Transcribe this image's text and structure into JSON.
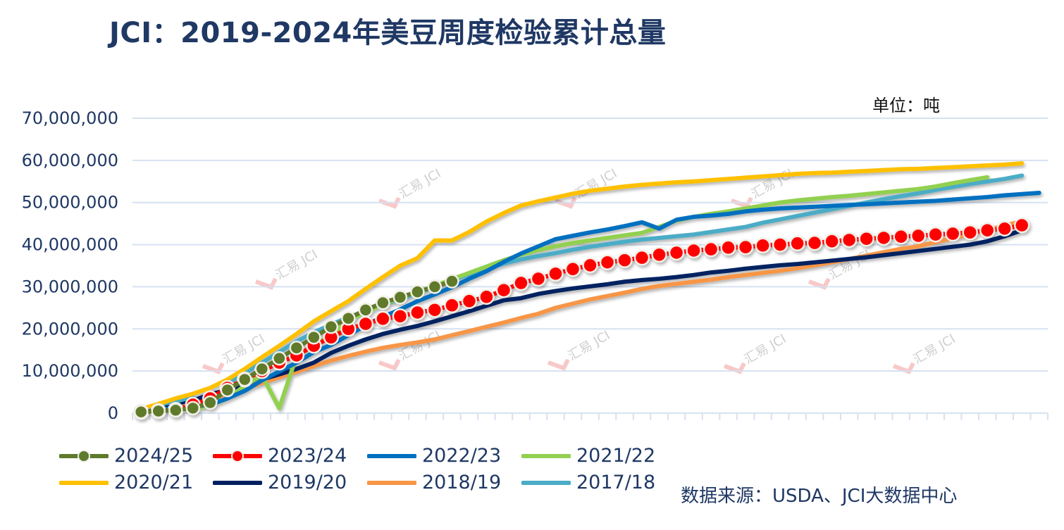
{
  "title": "JCI：2019-2024年美豆周度检验累计总量",
  "unit_label": "单位：吨",
  "source": "数据来源：USDA、JCI大数据中心",
  "watermark": "汇易 JCI",
  "chart_data": {
    "type": "line",
    "title": "JCI：2019-2024年美豆周度检验累计总量",
    "ylabel": "",
    "xlabel": "",
    "ylim": [
      0,
      70000000
    ],
    "yticks": [
      "0",
      "10,000,000",
      "20,000,000",
      "30,000,000",
      "40,000,000",
      "50,000,000",
      "60,000,000",
      "70,000,000"
    ],
    "x_categories_count": 53,
    "grid": "horizontal",
    "legend_placement": "bottom",
    "value_unit": "million tonnes (approx., read from axis)",
    "series": [
      {
        "name": "2024/25",
        "color": "#5E7A2C",
        "marker": "circle",
        "values": [
          0.3,
          0.5,
          0.7,
          1.2,
          2.5,
          5.5,
          8.0,
          10.5,
          13.0,
          15.5,
          18.0,
          20.5,
          22.5,
          24.5,
          26.2,
          27.5,
          28.8,
          30.0,
          31.3
        ]
      },
      {
        "name": "2023/24",
        "color": "#FF0000",
        "marker": "circle",
        "values": [
          0.3,
          0.5,
          0.8,
          2.0,
          3.5,
          6.0,
          8.0,
          10.0,
          12.0,
          13.7,
          16.0,
          18.0,
          20.0,
          21.2,
          22.4,
          23.0,
          23.9,
          24.5,
          25.6,
          26.6,
          27.6,
          29.2,
          30.9,
          31.9,
          33.1,
          34.2,
          35.1,
          35.8,
          36.3,
          36.9,
          37.6,
          38.1,
          38.6,
          38.9,
          39.3,
          39.4,
          39.8,
          40.0,
          40.3,
          40.4,
          40.8,
          41.1,
          41.4,
          41.6,
          41.9,
          42.1,
          42.4,
          42.6,
          42.9,
          43.4,
          43.8,
          44.6
        ]
      },
      {
        "name": "2022/23",
        "color": "#0070C0",
        "marker": "none",
        "values": [
          0.7,
          0.9,
          1.2,
          1.6,
          2.0,
          3.5,
          5.3,
          7.8,
          9.9,
          12.0,
          14.5,
          16.2,
          18.5,
          20.9,
          22.9,
          24.6,
          26.6,
          28.2,
          29.9,
          31.9,
          33.7,
          35.9,
          37.9,
          39.6,
          41.3,
          42.1,
          42.9,
          43.6,
          44.4,
          45.3,
          43.8,
          45.9,
          46.6,
          46.9,
          47.3,
          47.9,
          48.3,
          48.6,
          48.8,
          49.0,
          49.2,
          49.4,
          49.6,
          49.8,
          50.0,
          50.2,
          50.4,
          50.7,
          51.0,
          51.3,
          51.7,
          52.0,
          52.3
        ]
      },
      {
        "name": "2021/22",
        "color": "#92D050",
        "marker": "none",
        "values": [
          0.6,
          0.7,
          0.8,
          1.0,
          1.8,
          3.5,
          6.5,
          9.0,
          1.2,
          13.5,
          16.0,
          18.5,
          22.0,
          24.0,
          25.8,
          27.4,
          28.8,
          30.2,
          31.8,
          33.3,
          34.8,
          36.3,
          37.6,
          38.7,
          39.6,
          40.4,
          41.0,
          41.6,
          42.2,
          42.8,
          44.2,
          45.7,
          46.6,
          47.3,
          47.9,
          48.6,
          49.3,
          50.0,
          50.5,
          50.9,
          51.3,
          51.6,
          52.0,
          52.4,
          52.8,
          53.2,
          53.8,
          54.6,
          55.3,
          56.0
        ]
      },
      {
        "name": "2020/21",
        "color": "#FFC000",
        "marker": "none",
        "values": [
          1.0,
          2.2,
          3.5,
          4.6,
          6.0,
          8.0,
          10.5,
          13.3,
          16.0,
          18.8,
          21.8,
          24.2,
          26.6,
          29.5,
          32.3,
          35.0,
          36.8,
          41.0,
          41.0,
          43.0,
          45.5,
          47.5,
          49.3,
          50.3,
          51.2,
          52.1,
          52.8,
          53.3,
          53.8,
          54.2,
          54.5,
          54.8,
          55.0,
          55.3,
          55.6,
          55.9,
          56.2,
          56.5,
          56.8,
          57.0,
          57.1,
          57.3,
          57.5,
          57.7,
          57.9,
          58.0,
          58.2,
          58.4,
          58.6,
          58.8,
          59.0,
          59.3
        ]
      },
      {
        "name": "2019/20",
        "color": "#002060",
        "marker": "none",
        "values": [
          0.5,
          1.5,
          2.3,
          3.0,
          4.5,
          5.5,
          6.8,
          8.0,
          9.2,
          10.5,
          12.0,
          14.3,
          16.0,
          17.5,
          18.8,
          19.8,
          20.7,
          21.8,
          23.0,
          24.2,
          25.5,
          26.8,
          27.3,
          28.3,
          29.0,
          29.6,
          30.1,
          30.6,
          31.2,
          31.6,
          31.9,
          32.3,
          32.8,
          33.4,
          33.8,
          34.3,
          34.7,
          35.1,
          35.4,
          35.8,
          36.2,
          36.6,
          37.0,
          37.5,
          38.0,
          38.5,
          39.0,
          39.5,
          40.0,
          40.8,
          42.0,
          43.4
        ]
      },
      {
        "name": "2018/19",
        "color": "#F79646",
        "marker": "none",
        "values": [
          0.8,
          1.5,
          2.2,
          2.8,
          3.5,
          4.5,
          5.8,
          7.2,
          8.5,
          9.8,
          11.2,
          12.5,
          13.6,
          14.6,
          15.5,
          16.2,
          16.8,
          17.5,
          18.5,
          19.5,
          20.5,
          21.5,
          22.6,
          23.6,
          25.0,
          26.0,
          27.0,
          27.8,
          28.6,
          29.5,
          30.2,
          30.7,
          31.2,
          31.7,
          32.3,
          32.8,
          33.3,
          33.8,
          34.4,
          35.1,
          35.8,
          36.6,
          37.4,
          38.2,
          39.0,
          39.6,
          40.6,
          41.5,
          42.5,
          43.5,
          44.5,
          45.6
        ]
      },
      {
        "name": "2017/18",
        "color": "#4BACC6",
        "marker": "none",
        "values": [
          1.0,
          2.0,
          2.8,
          3.8,
          null,
          7.0,
          9.5,
          12.0,
          14.5,
          17.0,
          19.2,
          21.0,
          22.8,
          24.2,
          25.8,
          27.0,
          28.5,
          30.0,
          31.5,
          33.0,
          34.3,
          35.5,
          36.5,
          37.3,
          38.0,
          38.8,
          39.5,
          40.1,
          40.7,
          41.2,
          41.6,
          42.0,
          42.4,
          43.0,
          43.6,
          44.2,
          45.2,
          46.0,
          46.8,
          47.6,
          48.4,
          49.2,
          50.0,
          50.8,
          51.5,
          52.2,
          53.0,
          53.7,
          54.4,
          55.0,
          55.6,
          56.4
        ]
      }
    ]
  }
}
